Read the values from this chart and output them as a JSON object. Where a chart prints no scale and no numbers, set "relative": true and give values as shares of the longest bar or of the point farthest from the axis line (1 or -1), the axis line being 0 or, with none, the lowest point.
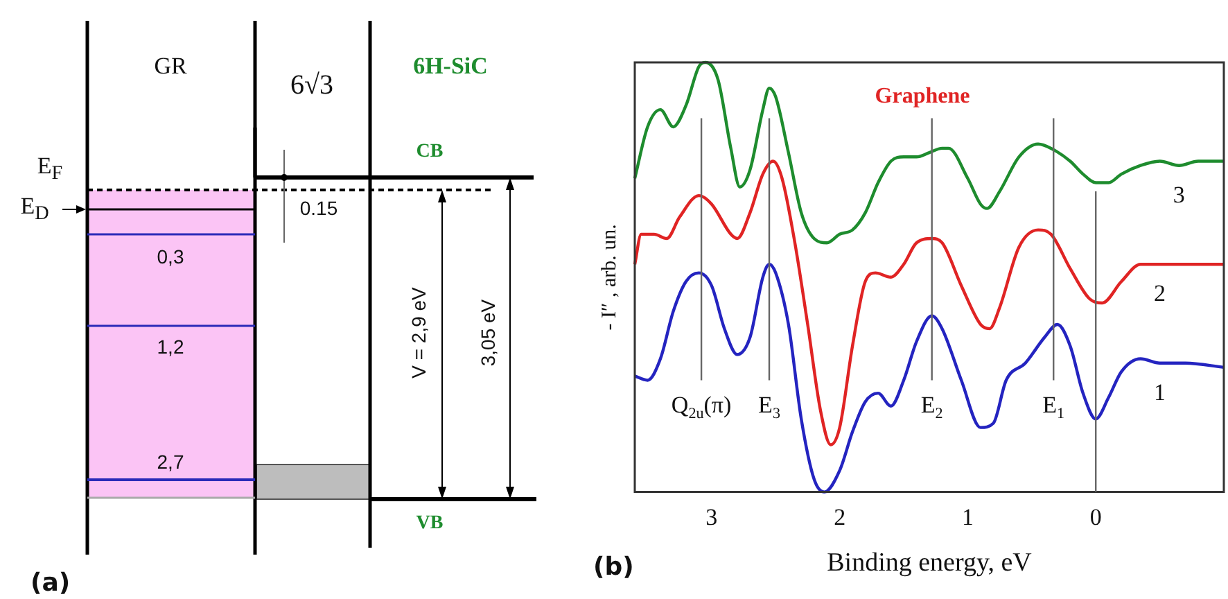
{
  "chart_data": [
    {
      "type": "other",
      "annotations": [
        "GR",
        "6√3",
        "6H-SiC",
        "CB",
        "VB",
        "E$_{F}$",
        "E$_{D}$",
        "0.15",
        "0,3",
        "1,2",
        "2,7",
        "V = 2,9 eV",
        "3,05 eV",
        "(a)"
      ]
    },
    {
      "type": "line",
      "xlabel": "Binding energy, eV",
      "ylabel": "- I″ , arb. un.",
      "relative": true,
      "legend": false,
      "grid": false,
      "tick_labels": "x",
      "marker": "none",
      "line_style": "solid",
      "xlim": [
        3.6,
        -1.0
      ],
      "xticks": [
        3,
        2,
        1,
        0,
        {
          "value": -1,
          "label": null
        }
      ],
      "annotations": [
        "Graphene",
        "(b)"
      ],
      "ref_lines": [
        {
          "axis": "x",
          "value": 3.08,
          "label": "Q$_{2u}$(π)"
        },
        {
          "axis": "x",
          "value": 2.55,
          "label": "E$_{3}$"
        },
        {
          "axis": "x",
          "value": 1.28,
          "label": "E$_{2}$"
        },
        {
          "axis": "x",
          "value": 0.33,
          "label": "E$_{1}$"
        },
        {
          "axis": "x",
          "value": 0,
          "label": null
        }
      ],
      "series": [
        {
          "name": "3",
          "color": "#1e8c2e",
          "x": [
            3.6,
            3.5,
            3.4,
            3.3,
            3.2,
            3.1,
            3.05,
            2.95,
            2.85,
            2.78,
            2.7,
            2.6,
            2.55,
            2.5,
            2.4,
            2.3,
            2.2,
            2.1,
            2.0,
            1.9,
            1.8,
            1.7,
            1.6,
            1.5,
            1.4,
            1.3,
            1.2,
            1.15,
            1.0,
            0.9,
            0.85,
            0.75,
            0.6,
            0.45,
            0.35,
            0.2,
            0.1,
            0.0,
            -0.1,
            -0.2,
            -0.35,
            -0.5,
            -0.65,
            -0.8,
            -1.0
          ],
          "values": [
            0.73,
            0.85,
            0.89,
            0.85,
            0.9,
            0.99,
            1.0,
            0.96,
            0.8,
            0.71,
            0.75,
            0.89,
            0.94,
            0.92,
            0.79,
            0.65,
            0.59,
            0.58,
            0.6,
            0.61,
            0.65,
            0.72,
            0.77,
            0.78,
            0.78,
            0.79,
            0.8,
            0.8,
            0.73,
            0.67,
            0.66,
            0.7,
            0.78,
            0.81,
            0.8,
            0.77,
            0.74,
            0.72,
            0.72,
            0.74,
            0.76,
            0.77,
            0.76,
            0.77,
            0.77
          ]
        },
        {
          "name": "2",
          "color": "#e02424",
          "x": [
            3.6,
            3.55,
            3.45,
            3.35,
            3.25,
            3.1,
            3.0,
            2.85,
            2.8,
            2.7,
            2.6,
            2.52,
            2.45,
            2.35,
            2.25,
            2.15,
            2.07,
            2.0,
            1.9,
            1.8,
            1.72,
            1.6,
            1.5,
            1.4,
            1.28,
            1.2,
            1.05,
            0.9,
            0.83,
            0.75,
            0.6,
            0.45,
            0.35,
            0.2,
            0.05,
            -0.05,
            -0.2,
            -0.35,
            -0.5,
            -0.7,
            -1.0
          ],
          "values": [
            0.53,
            0.6,
            0.6,
            0.59,
            0.64,
            0.69,
            0.67,
            0.6,
            0.59,
            0.65,
            0.74,
            0.77,
            0.73,
            0.58,
            0.39,
            0.19,
            0.11,
            0.15,
            0.34,
            0.49,
            0.51,
            0.5,
            0.53,
            0.58,
            0.59,
            0.58,
            0.48,
            0.39,
            0.38,
            0.43,
            0.57,
            0.61,
            0.6,
            0.52,
            0.45,
            0.44,
            0.49,
            0.53,
            0.53,
            0.53,
            0.53
          ]
        },
        {
          "name": "1",
          "color": "#2424c0",
          "x": [
            3.6,
            3.5,
            3.4,
            3.3,
            3.2,
            3.1,
            3.0,
            2.9,
            2.8,
            2.7,
            2.6,
            2.55,
            2.5,
            2.4,
            2.3,
            2.2,
            2.12,
            2.0,
            1.9,
            1.8,
            1.7,
            1.6,
            1.5,
            1.4,
            1.28,
            1.2,
            1.05,
            0.9,
            0.8,
            0.7,
            0.55,
            0.4,
            0.3,
            0.2,
            0.1,
            0.0,
            -0.1,
            -0.2,
            -0.35,
            -0.5,
            -0.7,
            -1.0
          ],
          "values": [
            0.27,
            0.26,
            0.31,
            0.42,
            0.49,
            0.51,
            0.48,
            0.38,
            0.32,
            0.36,
            0.5,
            0.53,
            0.51,
            0.39,
            0.17,
            0.03,
            0,
            0.05,
            0.14,
            0.21,
            0.23,
            0.2,
            0.26,
            0.35,
            0.41,
            0.38,
            0.26,
            0.15,
            0.16,
            0.26,
            0.3,
            0.36,
            0.39,
            0.34,
            0.23,
            0.17,
            0.22,
            0.28,
            0.31,
            0.3,
            0.3,
            0.29
          ]
        }
      ]
    }
  ]
}
